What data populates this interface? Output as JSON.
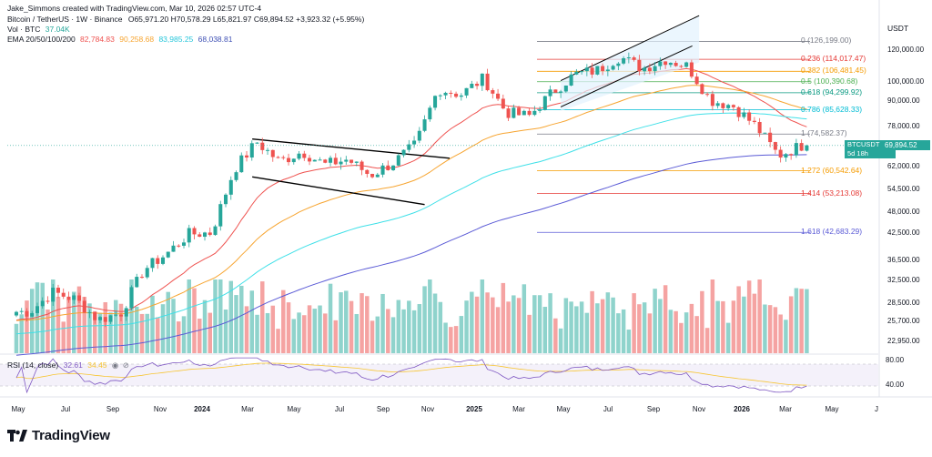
{
  "header": {
    "author_line": "Jake_Simmons created with TradingView.com, Mar 10, 2026 02:57 UTC-4",
    "symbol": "Bitcoin / TetherUS · 1W · Binance",
    "ohlc": "O65,971.20  H70,578.29  L65,821.97  C69,894.52  +3,923.32 (+5.95%)",
    "vol_label": "Vol · BTC",
    "vol_value": "37.04K",
    "ema_label": "EMA 20/50/100/200",
    "ema_values": [
      "82,784.83",
      "90,258.68",
      "83,985.25",
      "68,038.81"
    ],
    "currency": "USDT"
  },
  "colors": {
    "up": "#26a69a",
    "down": "#ef5350",
    "ema20": "#ef5350",
    "ema50": "#f7a531",
    "ema100": "#3fe0e8",
    "ema200": "#5b5bd6",
    "rsi": "#7e57c2"
  },
  "price_axis": {
    "ticks": [
      "120,000.00",
      "100,000.00",
      "90,000.00",
      "78,000.00",
      "69,894.52",
      "62,000.00",
      "54,500.00",
      "48,000.00",
      "42,500.00",
      "36,500.00",
      "32,500.00",
      "28,500.00",
      "25,700.00",
      "22,950.00"
    ],
    "last_symbol": "BTCUSDT",
    "last_price": "69,894.52",
    "countdown": "5d 18h"
  },
  "rsi": {
    "label": "RSI (14, close)",
    "value1": "32.61",
    "value2": "34.45",
    "ticks": [
      "80.00",
      "40.00"
    ]
  },
  "x_axis": {
    "ticks": [
      {
        "label": "May",
        "bold": false
      },
      {
        "label": "Jul",
        "bold": false
      },
      {
        "label": "Sep",
        "bold": false
      },
      {
        "label": "Nov",
        "bold": false
      },
      {
        "label": "2024",
        "bold": true
      },
      {
        "label": "Mar",
        "bold": false
      },
      {
        "label": "May",
        "bold": false
      },
      {
        "label": "Jul",
        "bold": false
      },
      {
        "label": "Sep",
        "bold": false
      },
      {
        "label": "Nov",
        "bold": false
      },
      {
        "label": "2025",
        "bold": true
      },
      {
        "label": "Mar",
        "bold": false
      },
      {
        "label": "May",
        "bold": false
      },
      {
        "label": "Jul",
        "bold": false
      },
      {
        "label": "Sep",
        "bold": false
      },
      {
        "label": "Nov",
        "bold": false
      },
      {
        "label": "2026",
        "bold": true
      },
      {
        "label": "Mar",
        "bold": false
      },
      {
        "label": "May",
        "bold": false
      },
      {
        "label": "J",
        "bold": false
      }
    ]
  },
  "chart_data": {
    "type": "candlestick",
    "title": "Bitcoin / TetherUS · 1W · Binance",
    "ylabel": "USDT",
    "y_scale": "log",
    "ylim": [
      21500,
      150000
    ],
    "x_range": [
      "2023-04",
      "2026-06"
    ],
    "fib_levels": [
      {
        "ratio": "0",
        "price": "126,199.00",
        "color": "#787b86"
      },
      {
        "ratio": "0.236",
        "price": "114,017.47",
        "color": "#e53935"
      },
      {
        "ratio": "0.382",
        "price": "106,481.45",
        "color": "#f59b00"
      },
      {
        "ratio": "0.5",
        "price": "100,390.68",
        "color": "#4caf50"
      },
      {
        "ratio": "0.618",
        "price": "94,299.92",
        "color": "#089981"
      },
      {
        "ratio": "0.786",
        "price": "85,628.33",
        "color": "#00bcd4"
      },
      {
        "ratio": "1",
        "price": "74,582.37",
        "color": "#787b86"
      },
      {
        "ratio": "1.272",
        "price": "60,542.64",
        "color": "#f59b00"
      },
      {
        "ratio": "1.414",
        "price": "53,213.08",
        "color": "#e53935"
      },
      {
        "ratio": "1.618",
        "price": "42,683.29",
        "color": "#5b5bd6"
      }
    ],
    "close_path": [
      [
        "2023-05",
        27200
      ],
      [
        "2023-06",
        30400
      ],
      [
        "2023-07",
        29200
      ],
      [
        "2023-08",
        26000
      ],
      [
        "2023-09",
        27000
      ],
      [
        "2023-10",
        34500
      ],
      [
        "2023-11",
        37700
      ],
      [
        "2023-12",
        42300
      ],
      [
        "2024-01",
        42600
      ],
      [
        "2024-02",
        61000
      ],
      [
        "2024-03",
        71300
      ],
      [
        "2024-04",
        63800
      ],
      [
        "2024-05",
        67500
      ],
      [
        "2024-06",
        62700
      ],
      [
        "2024-07",
        64600
      ],
      [
        "2024-08",
        59000
      ],
      [
        "2024-09",
        63300
      ],
      [
        "2024-10",
        70200
      ],
      [
        "2024-11",
        96400
      ],
      [
        "2024-12",
        93400
      ],
      [
        "2025-01",
        102400
      ],
      [
        "2025-02",
        84300
      ],
      [
        "2025-03",
        82500
      ],
      [
        "2025-04",
        94200
      ],
      [
        "2025-05",
        104600
      ],
      [
        "2025-06",
        107100
      ],
      [
        "2025-07",
        115700
      ],
      [
        "2025-08",
        108200
      ],
      [
        "2025-09",
        114000
      ],
      [
        "2025-10",
        109500
      ],
      [
        "2025-11",
        90400
      ],
      [
        "2025-12",
        87500
      ],
      [
        "2026-01",
        78000
      ],
      [
        "2026-02",
        66000
      ],
      [
        "2026-03",
        69894.52
      ]
    ],
    "ema_last": {
      "ema20": 82784.83,
      "ema50": 90258.68,
      "ema100": 83985.25,
      "ema200": 68038.81
    }
  }
}
